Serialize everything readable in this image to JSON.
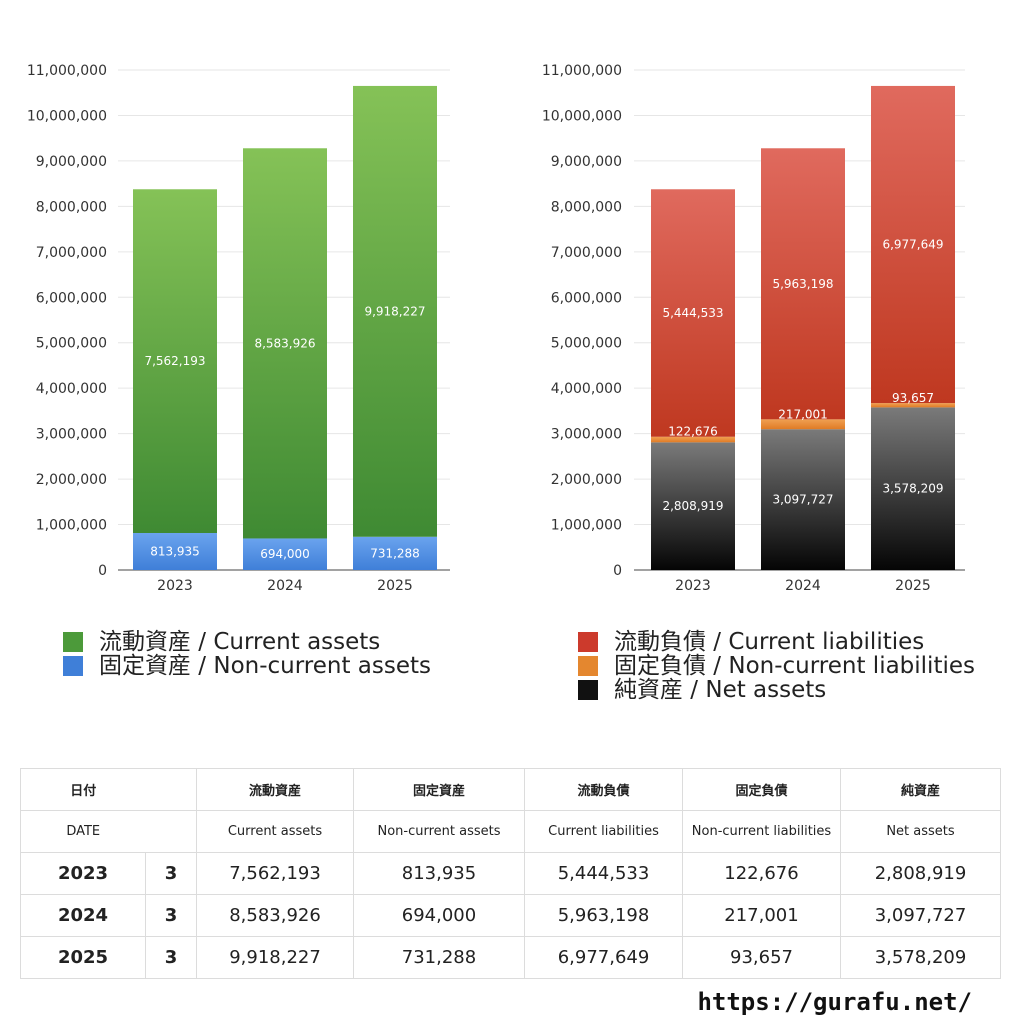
{
  "chart_data": [
    {
      "type": "bar",
      "stacked": true,
      "categories": [
        "2023",
        "2024",
        "2025"
      ],
      "ylim": [
        0,
        11000000
      ],
      "yticks": [
        0,
        1000000,
        2000000,
        3000000,
        4000000,
        5000000,
        6000000,
        7000000,
        8000000,
        9000000,
        10000000,
        11000000
      ],
      "ytick_labels": [
        "0",
        "1,000,000",
        "2,000,000",
        "3,000,000",
        "4,000,000",
        "5,000,000",
        "6,000,000",
        "7,000,000",
        "8,000,000",
        "9,000,000",
        "10,000,000",
        "11,000,000"
      ],
      "grid": true,
      "legend": "bottom",
      "series": [
        {
          "name": "固定資産 / Non-current assets",
          "values": [
            813935,
            694000,
            731288
          ],
          "labels": [
            "813,935",
            "694,000",
            "731,288"
          ],
          "color": "#3f7fd8",
          "color_top": "#6aa3ee"
        },
        {
          "name": "流動資産 / Current assets",
          "values": [
            7562193,
            8583926,
            9918227
          ],
          "labels": [
            "7,562,193",
            "8,583,926",
            "9,918,227"
          ],
          "color": "#3f8a33",
          "color_top": "#85c257"
        }
      ]
    },
    {
      "type": "bar",
      "stacked": true,
      "categories": [
        "2023",
        "2024",
        "2025"
      ],
      "ylim": [
        0,
        11000000
      ],
      "yticks": [
        0,
        1000000,
        2000000,
        3000000,
        4000000,
        5000000,
        6000000,
        7000000,
        8000000,
        9000000,
        10000000,
        11000000
      ],
      "ytick_labels": [
        "0",
        "1,000,000",
        "2,000,000",
        "3,000,000",
        "4,000,000",
        "5,000,000",
        "6,000,000",
        "7,000,000",
        "8,000,000",
        "9,000,000",
        "10,000,000",
        "11,000,000"
      ],
      "grid": true,
      "legend": "bottom",
      "series": [
        {
          "name": "純資産 / Net assets",
          "values": [
            2808919,
            3097727,
            3578209
          ],
          "labels": [
            "2,808,919",
            "3,097,727",
            "3,578,209"
          ],
          "color": "#050505",
          "color_top": "#7a7a7a"
        },
        {
          "name": "固定負債 / Non-current liabilities",
          "values": [
            122676,
            217001,
            93657
          ],
          "labels": [
            "122,676",
            "217,001",
            "93,657"
          ],
          "color": "#e07b25",
          "color_top": "#f0a052"
        },
        {
          "name": "流動負債 / Current liabilities",
          "values": [
            5444533,
            5963198,
            6977649
          ],
          "labels": [
            "5,444,533",
            "5,963,198",
            "6,977,649"
          ],
          "color": "#bf3820",
          "color_top": "#e06a5e"
        }
      ]
    }
  ],
  "legends": {
    "assets": [
      {
        "label": "流動資産 / Current assets",
        "color": "#4c9a3a"
      },
      {
        "label": "固定資産 / Non-current assets",
        "color": "#3f7fd8"
      }
    ],
    "liabilities": [
      {
        "label": "流動負債 / Current liabilities",
        "color": "#cc3a2c"
      },
      {
        "label": "固定負債 / Non-current liabilities",
        "color": "#e4872f"
      },
      {
        "label": "純資産 / Net assets",
        "color": "#111111"
      }
    ]
  },
  "table": {
    "header_jp": [
      "日付",
      "",
      "流動資産",
      "固定資産",
      "流動負債",
      "固定負債",
      "純資産"
    ],
    "header_en": [
      "DATE",
      "",
      "Current assets",
      "Non-current assets",
      "Current liabilities",
      "Non-current liabilities",
      "Net assets"
    ],
    "rows": [
      [
        "2023",
        "3",
        "7,562,193",
        "813,935",
        "5,444,533",
        "122,676",
        "2,808,919"
      ],
      [
        "2024",
        "3",
        "8,583,926",
        "694,000",
        "5,963,198",
        "217,001",
        "3,097,727"
      ],
      [
        "2025",
        "3",
        "9,918,227",
        "731,288",
        "6,977,649",
        "93,657",
        "3,578,209"
      ]
    ]
  },
  "footer": "https://gurafu.net/"
}
